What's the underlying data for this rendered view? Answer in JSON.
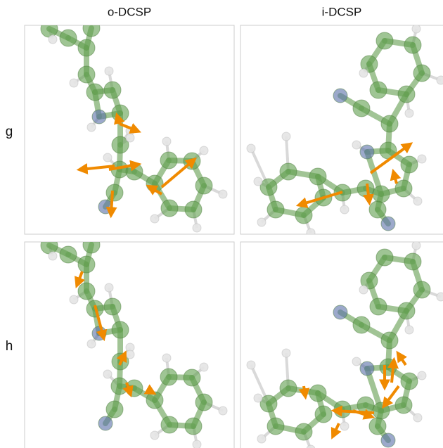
{
  "columns": [
    "o-DCSP",
    "i-DCSP"
  ],
  "rows": [
    "g",
    "h"
  ]
}
